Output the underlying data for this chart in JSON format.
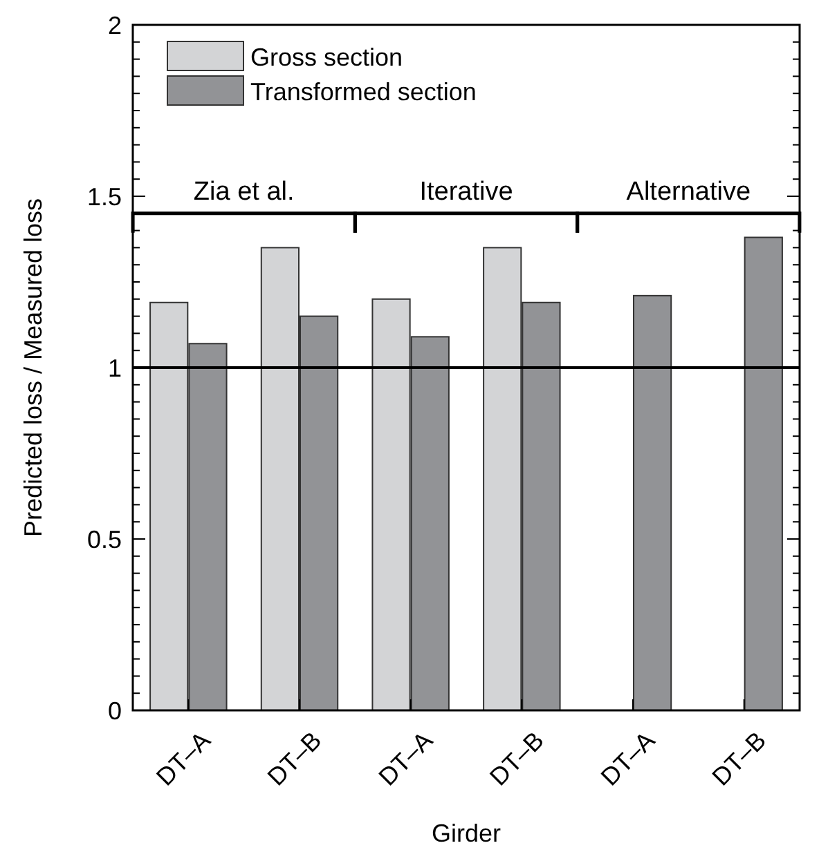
{
  "chart_data": {
    "type": "bar",
    "xlabel": "Girder",
    "ylabel": "Predicted loss / Measured loss",
    "categories": [
      "DT–A",
      "DT–B",
      "DT–A",
      "DT–B",
      "DT–A",
      "DT–B"
    ],
    "series": [
      {
        "name": "Gross section",
        "color": "#d3d4d6",
        "values": [
          1.19,
          1.35,
          1.2,
          1.35,
          0,
          0
        ]
      },
      {
        "name": "Transformed section",
        "color": "#929396",
        "values": [
          1.07,
          1.15,
          1.09,
          1.19,
          1.21,
          1.38
        ]
      }
    ],
    "ylim": [
      0,
      2
    ],
    "yticks": [
      0,
      {
        "value": 0.05,
        "label": null
      },
      {
        "value": 0.1,
        "label": null
      },
      {
        "value": 0.15,
        "label": null
      },
      {
        "value": 0.2,
        "label": null
      },
      {
        "value": 0.25,
        "label": null
      },
      {
        "value": 0.3,
        "label": null
      },
      {
        "value": 0.35,
        "label": null
      },
      {
        "value": 0.4,
        "label": null
      },
      {
        "value": 0.45,
        "label": null
      },
      0.5,
      {
        "value": 0.55,
        "label": null
      },
      {
        "value": 0.6,
        "label": null
      },
      {
        "value": 0.65,
        "label": null
      },
      {
        "value": 0.7,
        "label": null
      },
      {
        "value": 0.75,
        "label": null
      },
      {
        "value": 0.8,
        "label": null
      },
      {
        "value": 0.85,
        "label": null
      },
      {
        "value": 0.9,
        "label": null
      },
      {
        "value": 0.95,
        "label": null
      },
      1,
      {
        "value": 1.05,
        "label": null
      },
      {
        "value": 1.1,
        "label": null
      },
      {
        "value": 1.15,
        "label": null
      },
      {
        "value": 1.2,
        "label": null
      },
      {
        "value": 1.25,
        "label": null
      },
      {
        "value": 1.3,
        "label": null
      },
      {
        "value": 1.35,
        "label": null
      },
      {
        "value": 1.4,
        "label": null
      },
      {
        "value": 1.45,
        "label": null
      },
      1.5,
      {
        "value": 1.55,
        "label": null
      },
      {
        "value": 1.6,
        "label": null
      },
      {
        "value": 1.65,
        "label": null
      },
      {
        "value": 1.7,
        "label": null
      },
      {
        "value": 1.75,
        "label": null
      },
      {
        "value": 1.8,
        "label": null
      },
      {
        "value": 1.85,
        "label": null
      },
      {
        "value": 1.9,
        "label": null
      },
      {
        "value": 1.95,
        "label": null
      },
      2
    ],
    "ref_lines": [
      {
        "axis": "y",
        "value": 1,
        "color": "#000000"
      }
    ],
    "annotations": [
      "Zia et al.",
      "Iterative",
      "Alternative"
    ],
    "legend": "top left",
    "grid": false
  }
}
